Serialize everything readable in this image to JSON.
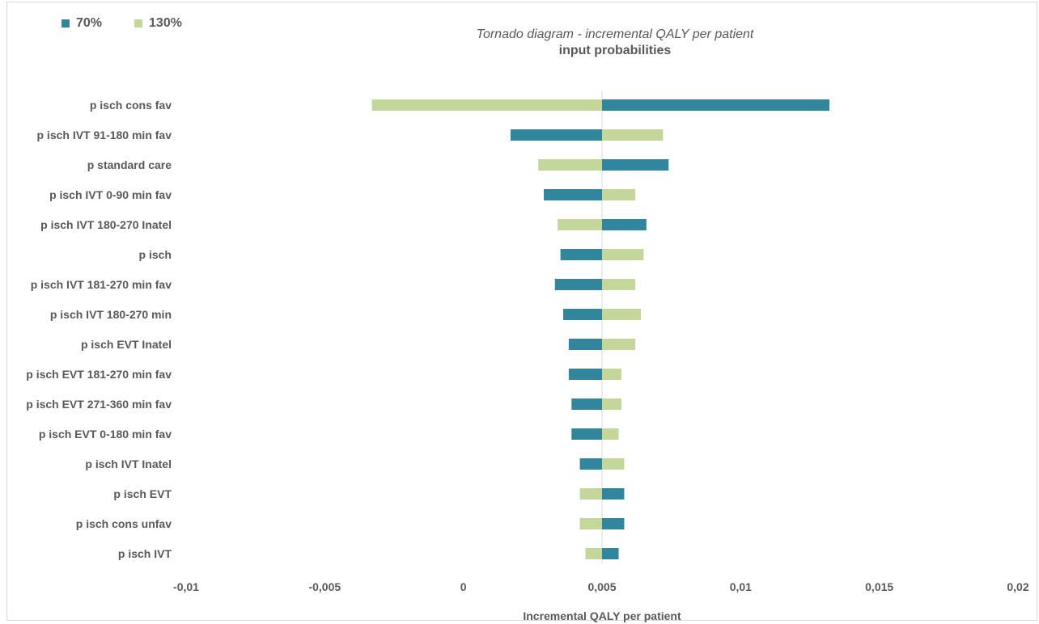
{
  "chart_data": {
    "type": "bar",
    "orientation": "horizontal",
    "title": "Tornado diagram - incremental QALY per patient",
    "subtitle": "input probabilities",
    "xlabel": "Incremental QALY per patient",
    "ylabel": "",
    "xlim": [
      -0.01,
      0.02
    ],
    "baseline": 0.005,
    "x_ticks": [
      "-0,01",
      "-0,005",
      "0",
      "0,005",
      "0,01",
      "0,015",
      "0,02"
    ],
    "x_tick_values": [
      -0.01,
      -0.005,
      0,
      0.005,
      0.01,
      0.015,
      0.02
    ],
    "grid": false,
    "legend_position": "top-left",
    "categories": [
      "p isch cons fav",
      "p isch IVT 91-180 min fav",
      "p standard care",
      "p isch IVT 0-90 min fav",
      "p isch IVT 180-270 Inatel",
      "p isch",
      "p isch IVT 181-270 min fav",
      "p isch IVT 180-270 min",
      "p isch EVT Inatel",
      "p isch EVT 181-270 min fav",
      "p isch EVT 271-360 min fav",
      "p isch EVT 0-180 min fav",
      "p isch IVT Inatel",
      "p isch EVT",
      "p isch cons unfav",
      "p isch IVT"
    ],
    "series": [
      {
        "name": "70%",
        "color": "#31859c",
        "values": [
          0.0132,
          0.0017,
          0.0074,
          0.0029,
          0.0066,
          0.0035,
          0.0033,
          0.0036,
          0.0038,
          0.0038,
          0.0039,
          0.0039,
          0.0042,
          0.0058,
          0.0058,
          0.0056
        ]
      },
      {
        "name": "130%",
        "color": "#c4d79b",
        "values": [
          -0.0033,
          0.0072,
          0.0027,
          0.0062,
          0.0034,
          0.0065,
          0.0062,
          0.0064,
          0.0062,
          0.0057,
          0.0057,
          0.0056,
          0.0058,
          0.0042,
          0.0042,
          0.0044
        ]
      }
    ]
  }
}
